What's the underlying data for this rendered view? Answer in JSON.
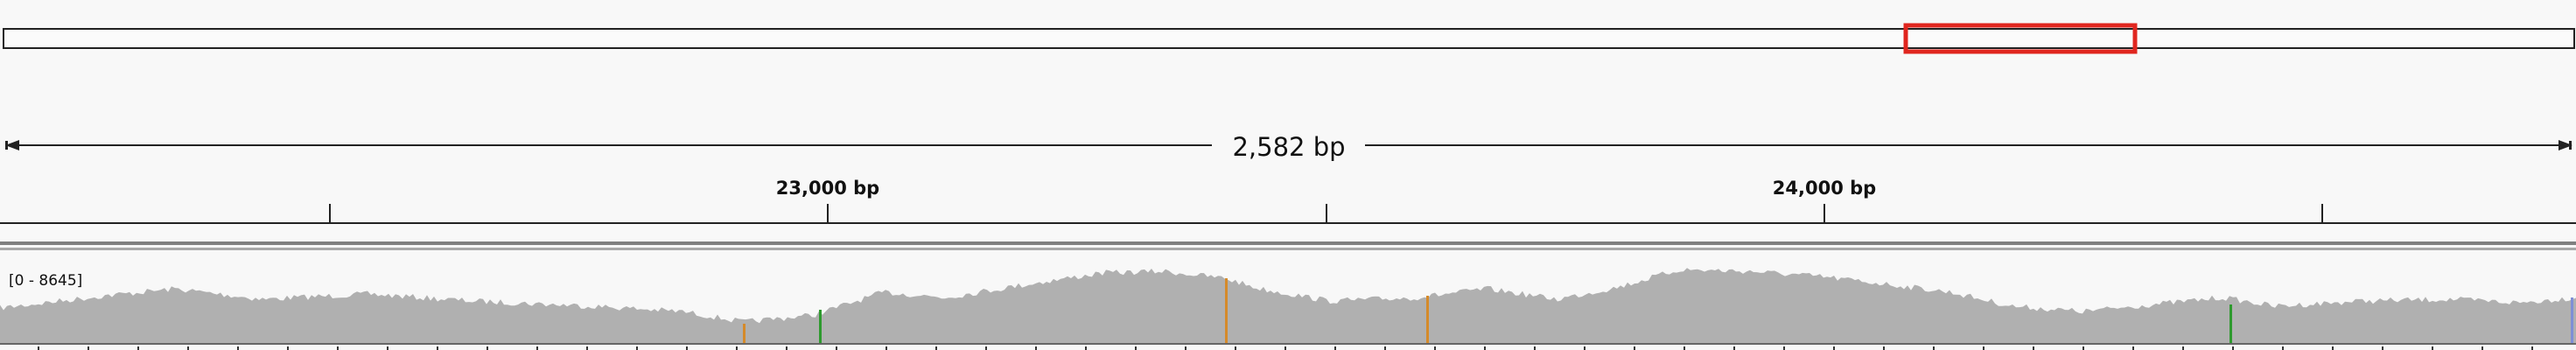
{
  "ruler": {
    "span_label": "2,582 bp",
    "ticks": [
      {
        "label": ""
      },
      {
        "label": "23,000 bp"
      },
      {
        "label": ""
      },
      {
        "label": "24,000 bp"
      },
      {
        "label": ""
      }
    ]
  },
  "coverage_track": {
    "range_label": "[0 - 8645]",
    "fill_color": "#b0b0b0",
    "mismatch_colors": {
      "orange": "#d58a2a",
      "green": "#2e9a2e"
    }
  },
  "colors": {
    "background": "#f8f8f8",
    "current_region": "#e0261f",
    "line": "#222222"
  }
}
